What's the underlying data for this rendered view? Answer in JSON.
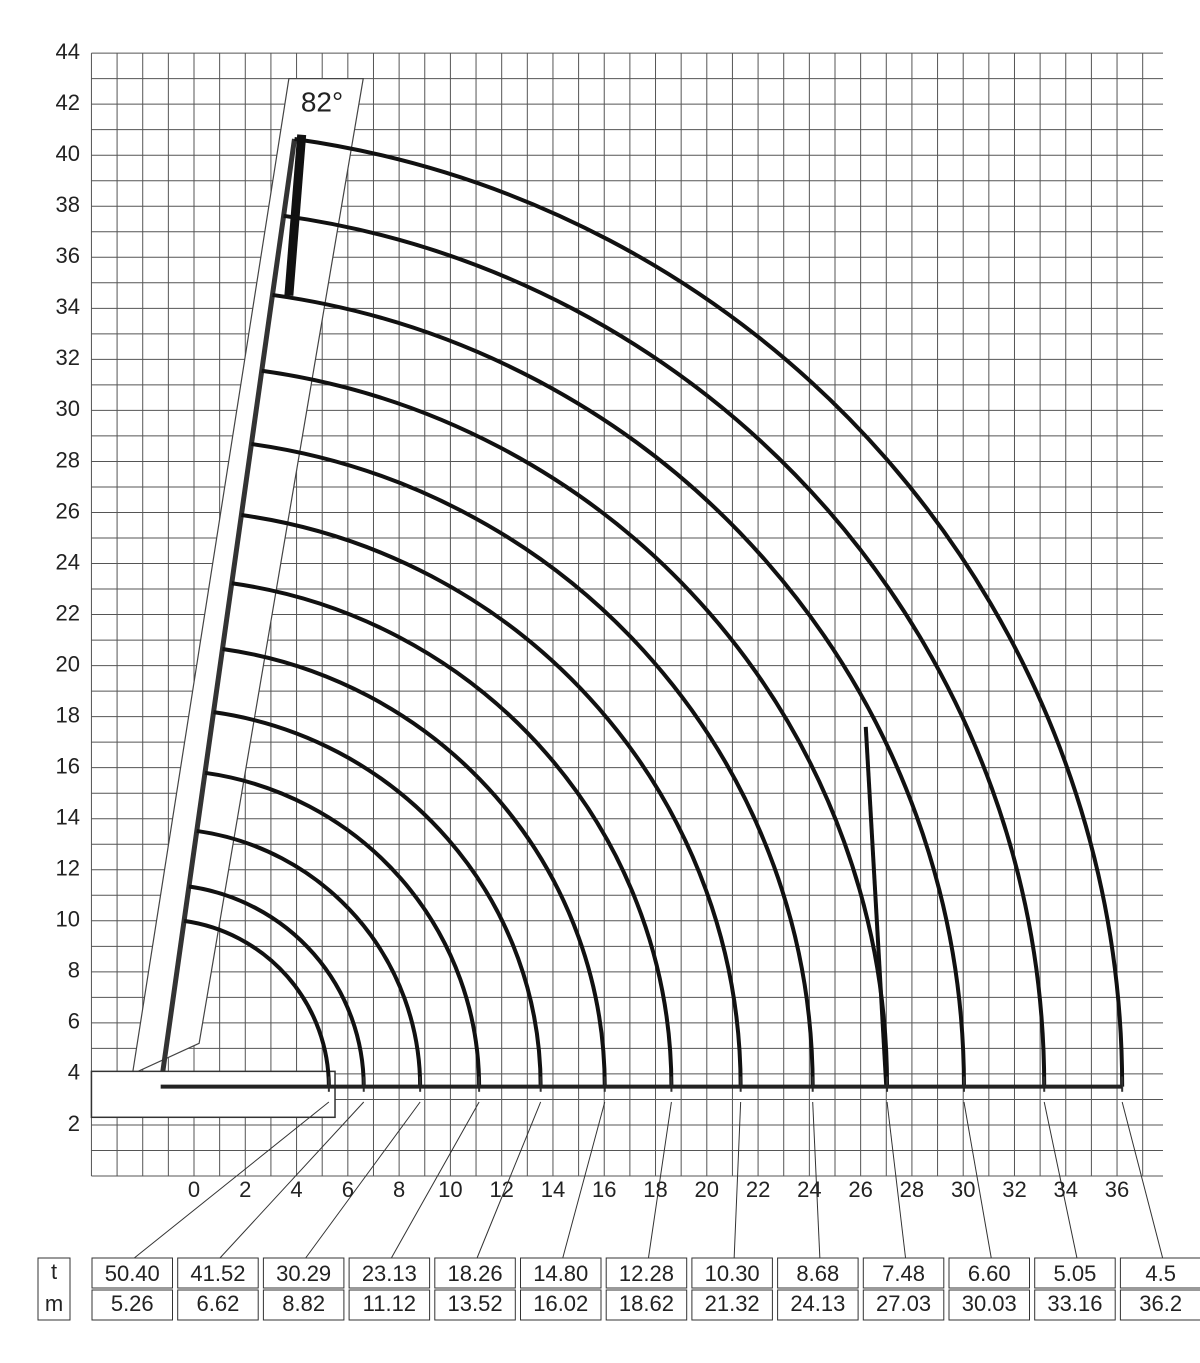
{
  "y_axis": {
    "ticks": [
      2,
      4,
      6,
      8,
      10,
      12,
      14,
      16,
      18,
      20,
      22,
      24,
      26,
      28,
      30,
      32,
      34,
      36,
      38,
      40,
      42,
      44
    ]
  },
  "x_axis": {
    "ticks": [
      0,
      2,
      4,
      6,
      8,
      10,
      12,
      14,
      16,
      18,
      20,
      22,
      24,
      26,
      28,
      30,
      32,
      34,
      36
    ]
  },
  "angle_label": "82°",
  "table": {
    "row_labels": [
      "t",
      "m"
    ],
    "load_t": [
      "50.40",
      "41.52",
      "30.29",
      "23.13",
      "18.26",
      "14.80",
      "12.28",
      "10.30",
      "8.68",
      "7.48",
      "6.60",
      "5.05",
      "4.5"
    ],
    "radius_m": [
      "5.26",
      "6.62",
      "8.82",
      "11.12",
      "13.52",
      "16.02",
      "18.62",
      "21.32",
      "24.13",
      "27.03",
      "30.03",
      "33.16",
      "36.2"
    ]
  }
}
